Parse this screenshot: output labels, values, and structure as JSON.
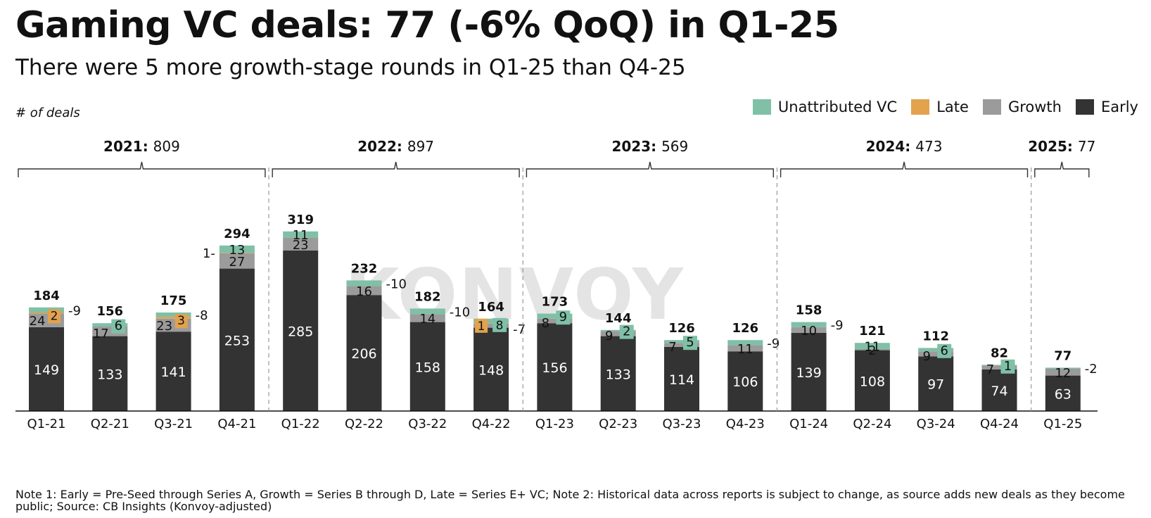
{
  "title": "Gaming VC deals: 77 (-6% QoQ) in Q1-25",
  "subtitle": "There were 5 more growth-stage rounds in Q1-25 than Q4-25",
  "note": "Note 1: Early = Pre-Seed through Series A, Growth = Series B through D, Late = Series E+ VC; Note 2: Historical data across reports is subject to change, as source adds new deals as they become public; Source: CB Insights (Konvoy-adjusted)",
  "watermark": "KONVOY",
  "colors": {
    "early": "#333333",
    "growth": "#9b9b9b",
    "late": "#e2a24e",
    "unattributed": "#7fc0a7"
  },
  "chart_data": {
    "type": "bar",
    "stacked": true,
    "ylabel": "# of deals",
    "legend_position": "top-right",
    "categories": [
      "Q1-21",
      "Q2-21",
      "Q3-21",
      "Q4-21",
      "Q1-22",
      "Q2-22",
      "Q3-22",
      "Q4-22",
      "Q1-23",
      "Q2-23",
      "Q3-23",
      "Q4-23",
      "Q1-24",
      "Q2-24",
      "Q3-24",
      "Q4-24",
      "Q1-25"
    ],
    "series": [
      {
        "name": "Early",
        "key": "early",
        "values": [
          149,
          133,
          141,
          253,
          285,
          206,
          158,
          148,
          156,
          133,
          114,
          106,
          139,
          108,
          97,
          74,
          63
        ]
      },
      {
        "name": "Growth",
        "key": "growth",
        "values": [
          24,
          17,
          23,
          27,
          23,
          16,
          14,
          7,
          8,
          9,
          7,
          11,
          10,
          2,
          9,
          7,
          12
        ]
      },
      {
        "name": "Late",
        "key": "late",
        "values": [
          2,
          0,
          3,
          1,
          0,
          0,
          0,
          1,
          0,
          0,
          0,
          0,
          0,
          0,
          0,
          0,
          0
        ]
      },
      {
        "name": "Unattributed VC",
        "key": "unattributed",
        "values": [
          9,
          6,
          8,
          13,
          11,
          10,
          10,
          8,
          9,
          2,
          5,
          9,
          9,
          11,
          6,
          1,
          2
        ]
      }
    ],
    "totals": [
      184,
      156,
      175,
      294,
      319,
      232,
      182,
      164,
      173,
      144,
      126,
      126,
      158,
      121,
      112,
      82,
      77
    ],
    "legend": [
      "Unattributed VC",
      "Late",
      "Growth",
      "Early"
    ],
    "year_groups": [
      {
        "year": "2021:",
        "total": "809"
      },
      {
        "year": "2022:",
        "total": "897"
      },
      {
        "year": "2023:",
        "total": "569"
      },
      {
        "year": "2024:",
        "total": "473"
      },
      {
        "year": "2025:",
        "total": "77"
      }
    ]
  }
}
